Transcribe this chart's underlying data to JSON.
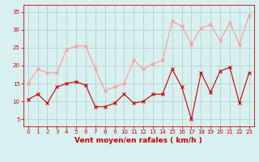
{
  "x": [
    0,
    1,
    2,
    3,
    4,
    5,
    6,
    7,
    8,
    9,
    10,
    11,
    12,
    13,
    14,
    15,
    16,
    17,
    18,
    19,
    20,
    21,
    22,
    23
  ],
  "wind_avg": [
    10.5,
    12,
    9.5,
    14,
    15,
    15.5,
    14.5,
    8.5,
    8.5,
    9.5,
    12,
    9.5,
    10,
    12,
    12,
    19,
    14,
    5,
    18,
    12.5,
    18.5,
    19.5,
    9.5,
    18
  ],
  "wind_gust": [
    15,
    19,
    18,
    18,
    24.5,
    25.5,
    25.5,
    19,
    13,
    14,
    15,
    21.5,
    19,
    20.5,
    21.5,
    32.5,
    31,
    26,
    30.5,
    31.5,
    27,
    32,
    26,
    34
  ],
  "avg_color": "#cc0000",
  "gust_color": "#ff9999",
  "bg_color": "#d8f0f0",
  "grid_color": "#b0c8c8",
  "xlabel": "Vent moyen/en rafales ( km/h )",
  "ylim": [
    3,
    37
  ],
  "yticks": [
    5,
    10,
    15,
    20,
    25,
    30,
    35
  ],
  "xlim": [
    -0.5,
    23.5
  ],
  "xlabel_color": "#cc0000",
  "tick_color": "#cc0000",
  "tick_fontsize": 5,
  "xlabel_fontsize": 6.5
}
